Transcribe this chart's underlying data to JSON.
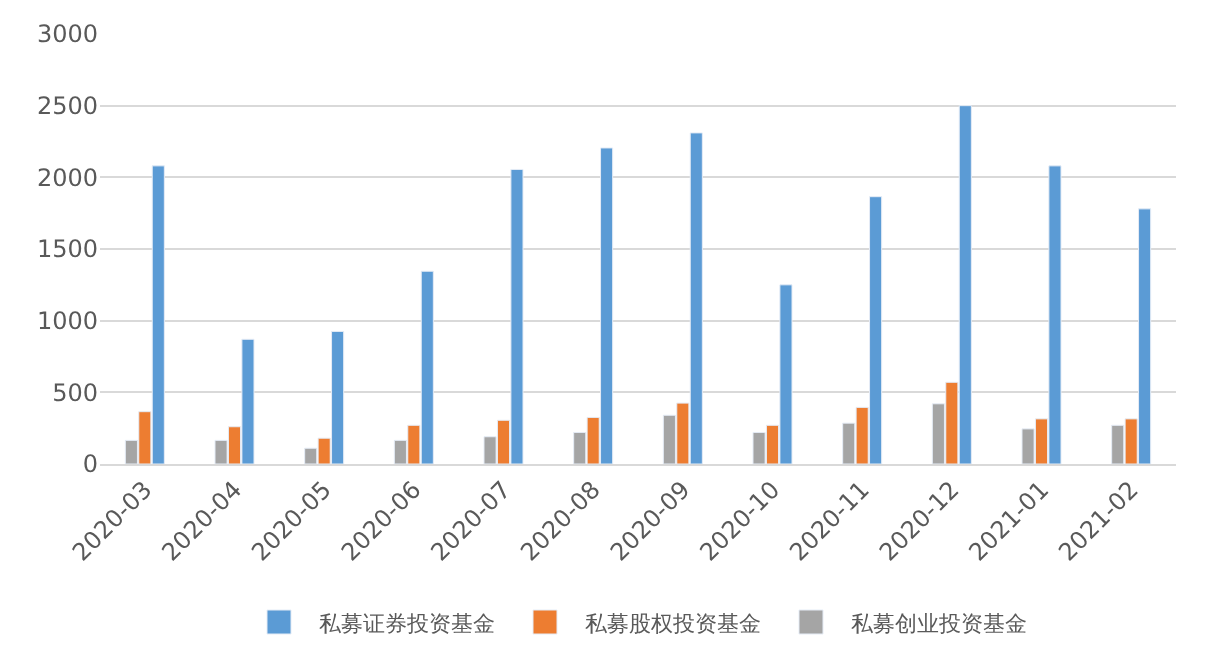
{
  "chart_data": {
    "type": "bar",
    "categories": [
      "2020-03",
      "2020-04",
      "2020-05",
      "2020-06",
      "2020-07",
      "2020-08",
      "2020-09",
      "2020-10",
      "2020-11",
      "2020-12",
      "2021-01",
      "2021-02"
    ],
    "series": [
      {
        "name": "私募创业投资基金",
        "color": "#a5a5a5",
        "values": [
          165,
          165,
          110,
          165,
          190,
          220,
          340,
          220,
          285,
          420,
          245,
          270
        ]
      },
      {
        "name": "私募股权投资基金",
        "color": "#ed7d31",
        "values": [
          365,
          260,
          180,
          270,
          305,
          325,
          425,
          270,
          395,
          570,
          315,
          315
        ]
      },
      {
        "name": "私募证券投资基金",
        "color": "#5b9bd5",
        "values": [
          2080,
          870,
          925,
          1345,
          2055,
          2205,
          2310,
          1250,
          1865,
          2500,
          2080,
          1780
        ]
      }
    ],
    "ylim": [
      0,
      3000
    ],
    "yticks": [
      0,
      500,
      1000,
      1500,
      2000,
      2500,
      3000
    ],
    "grid": "y",
    "legend": "bottom"
  }
}
